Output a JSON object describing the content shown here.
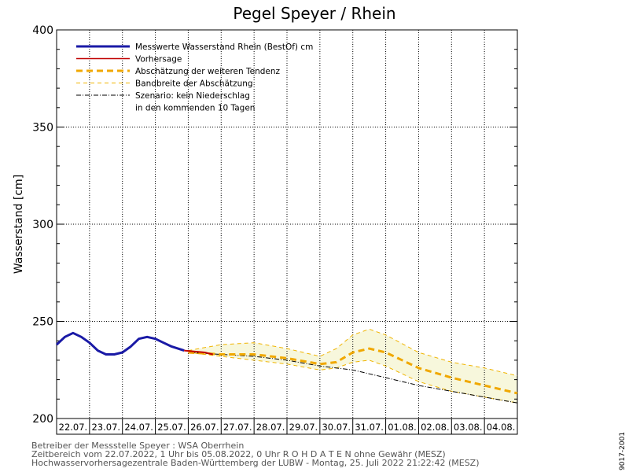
{
  "chart_data": {
    "type": "line",
    "title": "Pegel Speyer / Rhein",
    "ylabel": "Wasserstand [cm]",
    "xlabel": "",
    "ylim": [
      200,
      400
    ],
    "yticks": [
      200,
      250,
      300,
      350,
      400
    ],
    "xlim": [
      "2022-07-22",
      "2022-08-05"
    ],
    "grid": true,
    "legend_position": "top-left",
    "x_tick_labels": [
      "22.07.",
      "23.07.",
      "24.07.",
      "25.07.",
      "26.07.",
      "27.07.",
      "28.07.",
      "29.07.",
      "30.07.",
      "31.07.",
      "01.08.",
      "02.08.",
      "03.08.",
      "04.08."
    ],
    "legend": [
      {
        "label": "Messwerte Wasserstand Rhein (BestOf)   cm",
        "color": "#1a1aa6",
        "style": "solid-thick"
      },
      {
        "label": "Vorhersage",
        "color": "#c00000",
        "style": "solid"
      },
      {
        "label": "Abschätzung der weiteren Tendenz",
        "color": "#f0a800",
        "style": "dashed-thick"
      },
      {
        "label": "Bandbreite der Abschätzung",
        "color": "#f0b400",
        "style": "dashed-thin"
      },
      {
        "label": "Szenario: kein Niederschlag",
        "color": "#000000",
        "style": "dashdot"
      },
      {
        "label": "in den kommenden 10 Tagen",
        "color": "",
        "style": "none"
      }
    ],
    "series": [
      {
        "name": "Messwerte Wasserstand Rhein (BestOf)   cm",
        "color": "#1a1aa6",
        "x": [
          "2022-07-22T00:00",
          "2022-07-22T06:00",
          "2022-07-22T12:00",
          "2022-07-22T18:00",
          "2022-07-23T00:00",
          "2022-07-23T06:00",
          "2022-07-23T12:00",
          "2022-07-23T18:00",
          "2022-07-24T00:00",
          "2022-07-24T06:00",
          "2022-07-24T12:00",
          "2022-07-24T18:00",
          "2022-07-25T00:00",
          "2022-07-25T06:00",
          "2022-07-25T12:00",
          "2022-07-25T21:00"
        ],
        "y": [
          238,
          242,
          244,
          242,
          239,
          235,
          233,
          233,
          234,
          237,
          241,
          242,
          241,
          239,
          237,
          235
        ]
      },
      {
        "name": "Vorhersage",
        "color": "#c00000",
        "x": [
          "2022-07-25T21:00",
          "2022-07-26T12:00",
          "2022-07-26T18:00"
        ],
        "y": [
          235,
          234,
          233
        ]
      },
      {
        "name": "Abschätzung der weiteren Tendenz",
        "color": "#f0a800",
        "x": [
          "2022-07-26T00:00",
          "2022-07-27T00:00",
          "2022-07-28T00:00",
          "2022-07-29T00:00",
          "2022-07-30T00:00",
          "2022-07-30T12:00",
          "2022-07-31T00:00",
          "2022-07-31T12:00",
          "2022-08-01T00:00",
          "2022-08-02T00:00",
          "2022-08-03T00:00",
          "2022-08-04T00:00",
          "2022-08-05T00:00"
        ],
        "y": [
          234,
          233,
          233,
          231,
          228,
          229,
          234,
          236,
          234,
          226,
          221,
          217,
          213
        ]
      },
      {
        "name": "Bandbreite der Abschätzung (oben)",
        "color": "#f0b400",
        "x": [
          "2022-07-26T00:00",
          "2022-07-27T00:00",
          "2022-07-28T00:00",
          "2022-07-29T00:00",
          "2022-07-30T00:00",
          "2022-07-30T12:00",
          "2022-07-31T00:00",
          "2022-07-31T12:00",
          "2022-08-01T00:00",
          "2022-08-02T00:00",
          "2022-08-03T00:00",
          "2022-08-04T00:00",
          "2022-08-05T00:00"
        ],
        "y": [
          235,
          238,
          239,
          236,
          232,
          236,
          243,
          246,
          243,
          234,
          229,
          226,
          222
        ]
      },
      {
        "name": "Bandbreite der Abschätzung (unten)",
        "color": "#f0b400",
        "x": [
          "2022-07-26T00:00",
          "2022-07-27T00:00",
          "2022-07-28T00:00",
          "2022-07-29T00:00",
          "2022-07-30T00:00",
          "2022-07-30T12:00",
          "2022-07-31T00:00",
          "2022-07-31T12:00",
          "2022-08-01T00:00",
          "2022-08-02T00:00",
          "2022-08-03T00:00",
          "2022-08-04T00:00",
          "2022-08-05T00:00"
        ],
        "y": [
          234,
          232,
          230,
          228,
          225,
          226,
          229,
          230,
          227,
          219,
          214,
          211,
          208
        ]
      },
      {
        "name": "Szenario: kein Niederschlag",
        "color": "#000000",
        "x": [
          "2022-07-26T00:00",
          "2022-07-27T00:00",
          "2022-07-28T00:00",
          "2022-07-29T00:00",
          "2022-07-30T00:00",
          "2022-07-31T00:00",
          "2022-08-01T00:00",
          "2022-08-02T00:00",
          "2022-08-03T00:00",
          "2022-08-04T00:00",
          "2022-08-05T00:00"
        ],
        "y": [
          234,
          233,
          232,
          230,
          227,
          225,
          221,
          217,
          214,
          211,
          208
        ]
      }
    ]
  },
  "footer": {
    "line1": "Betreiber der Messstelle Speyer : WSA Oberrhein",
    "line2": "Zeitbereich vom 22.07.2022, 1 Uhr bis 05.08.2022, 0 Uhr   R O H D A T E N  ohne Gewähr (MESZ)",
    "line3": "Hochwasservorhersagezentrale Baden-Württemberg der LUBW - Montag, 25. Juli 2022 21:22:42 (MESZ)"
  },
  "side_code": "9017-2001",
  "colors": {
    "band_fill": "#f7f7dc",
    "grid": "#000000"
  }
}
